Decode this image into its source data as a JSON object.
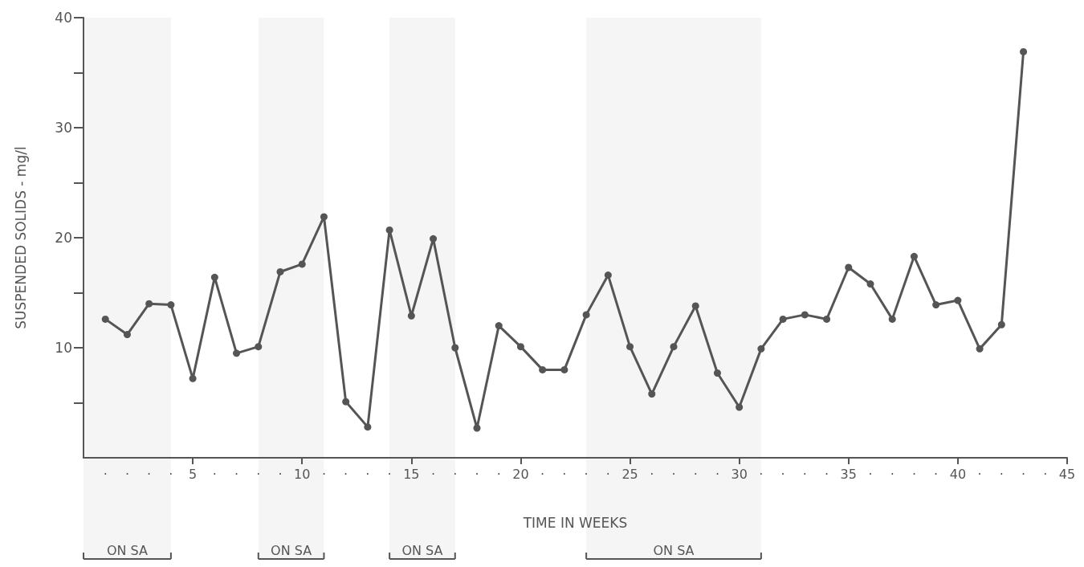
{
  "chart_data": {
    "type": "line",
    "xlabel": "TIME IN WEEKS",
    "ylabel": "SUSPENDED SOLIDS - mg/l",
    "x": [
      1,
      2,
      3,
      4,
      5,
      6,
      7,
      8,
      9,
      10,
      11,
      12,
      13,
      14,
      15,
      16,
      17,
      18,
      19,
      20,
      21,
      22,
      23,
      24,
      25,
      26,
      27,
      28,
      29,
      30,
      31,
      32,
      33,
      34,
      35,
      36,
      37,
      38,
      39,
      40,
      41,
      42,
      43
    ],
    "series": [
      {
        "color": "#555555",
        "values": [
          12.6,
          11.2,
          14.0,
          13.9,
          7.2,
          16.4,
          9.5,
          10.1,
          16.9,
          17.6,
          21.9,
          5.1,
          2.8,
          20.7,
          12.9,
          19.9,
          10.0,
          2.7,
          12.0,
          10.1,
          8.0,
          8.0,
          13.0,
          16.6,
          10.1,
          5.8,
          10.1,
          13.8,
          7.7,
          4.6,
          9.9,
          12.6,
          13.0,
          12.6,
          17.3,
          15.8,
          12.6,
          18.3,
          13.9,
          14.3,
          9.9,
          12.1,
          36.9
        ]
      }
    ],
    "xlim": [
      0,
      45
    ],
    "xticks": [
      {
        "value": 1,
        "label": "·"
      },
      {
        "value": 2,
        "label": "·"
      },
      {
        "value": 3,
        "label": "·"
      },
      {
        "value": 4,
        "label": "·"
      },
      5,
      {
        "value": 6,
        "label": "·"
      },
      {
        "value": 7,
        "label": "·"
      },
      {
        "value": 8,
        "label": "·"
      },
      {
        "value": 9,
        "label": "·"
      },
      10,
      {
        "value": 11,
        "label": "·"
      },
      {
        "value": 12,
        "label": "·"
      },
      {
        "value": 13,
        "label": "·"
      },
      {
        "value": 14,
        "label": "·"
      },
      15,
      {
        "value": 16,
        "label": "·"
      },
      {
        "value": 17,
        "label": "·"
      },
      {
        "value": 18,
        "label": "·"
      },
      {
        "value": 19,
        "label": "·"
      },
      20,
      {
        "value": 21,
        "label": "·"
      },
      {
        "value": 22,
        "label": "·"
      },
      {
        "value": 23,
        "label": "·"
      },
      {
        "value": 24,
        "label": "·"
      },
      25,
      {
        "value": 26,
        "label": "·"
      },
      {
        "value": 27,
        "label": "·"
      },
      {
        "value": 28,
        "label": "·"
      },
      {
        "value": 29,
        "label": "·"
      },
      30,
      {
        "value": 31,
        "label": "·"
      },
      {
        "value": 32,
        "label": "·"
      },
      {
        "value": 33,
        "label": "·"
      },
      {
        "value": 34,
        "label": "·"
      },
      35,
      {
        "value": 36,
        "label": "·"
      },
      {
        "value": 37,
        "label": "·"
      },
      {
        "value": 38,
        "label": "·"
      },
      {
        "value": 39,
        "label": "·"
      },
      40,
      {
        "value": 41,
        "label": "·"
      },
      {
        "value": 42,
        "label": "·"
      },
      {
        "value": 43,
        "label": "·"
      },
      {
        "value": 44,
        "label": "·"
      },
      45
    ],
    "ylim": [
      0,
      40
    ],
    "yticks": [
      {
        "value": 5,
        "label": null
      },
      10,
      {
        "value": 15,
        "label": null
      },
      20,
      {
        "value": 25,
        "label": null
      },
      30,
      {
        "value": 35,
        "label": null
      },
      40
    ],
    "bands": [
      {
        "axis": "x",
        "from": 0,
        "to": 4,
        "label": "ON SA"
      },
      {
        "axis": "x",
        "from": 8,
        "to": 11,
        "label": "ON SA"
      },
      {
        "axis": "x",
        "from": 14,
        "to": 17,
        "label": "ON SA"
      },
      {
        "axis": "x",
        "from": 23,
        "to": 31,
        "label": "ON SA"
      }
    ],
    "grid": false,
    "marker": "circle",
    "line_style": "solid"
  }
}
